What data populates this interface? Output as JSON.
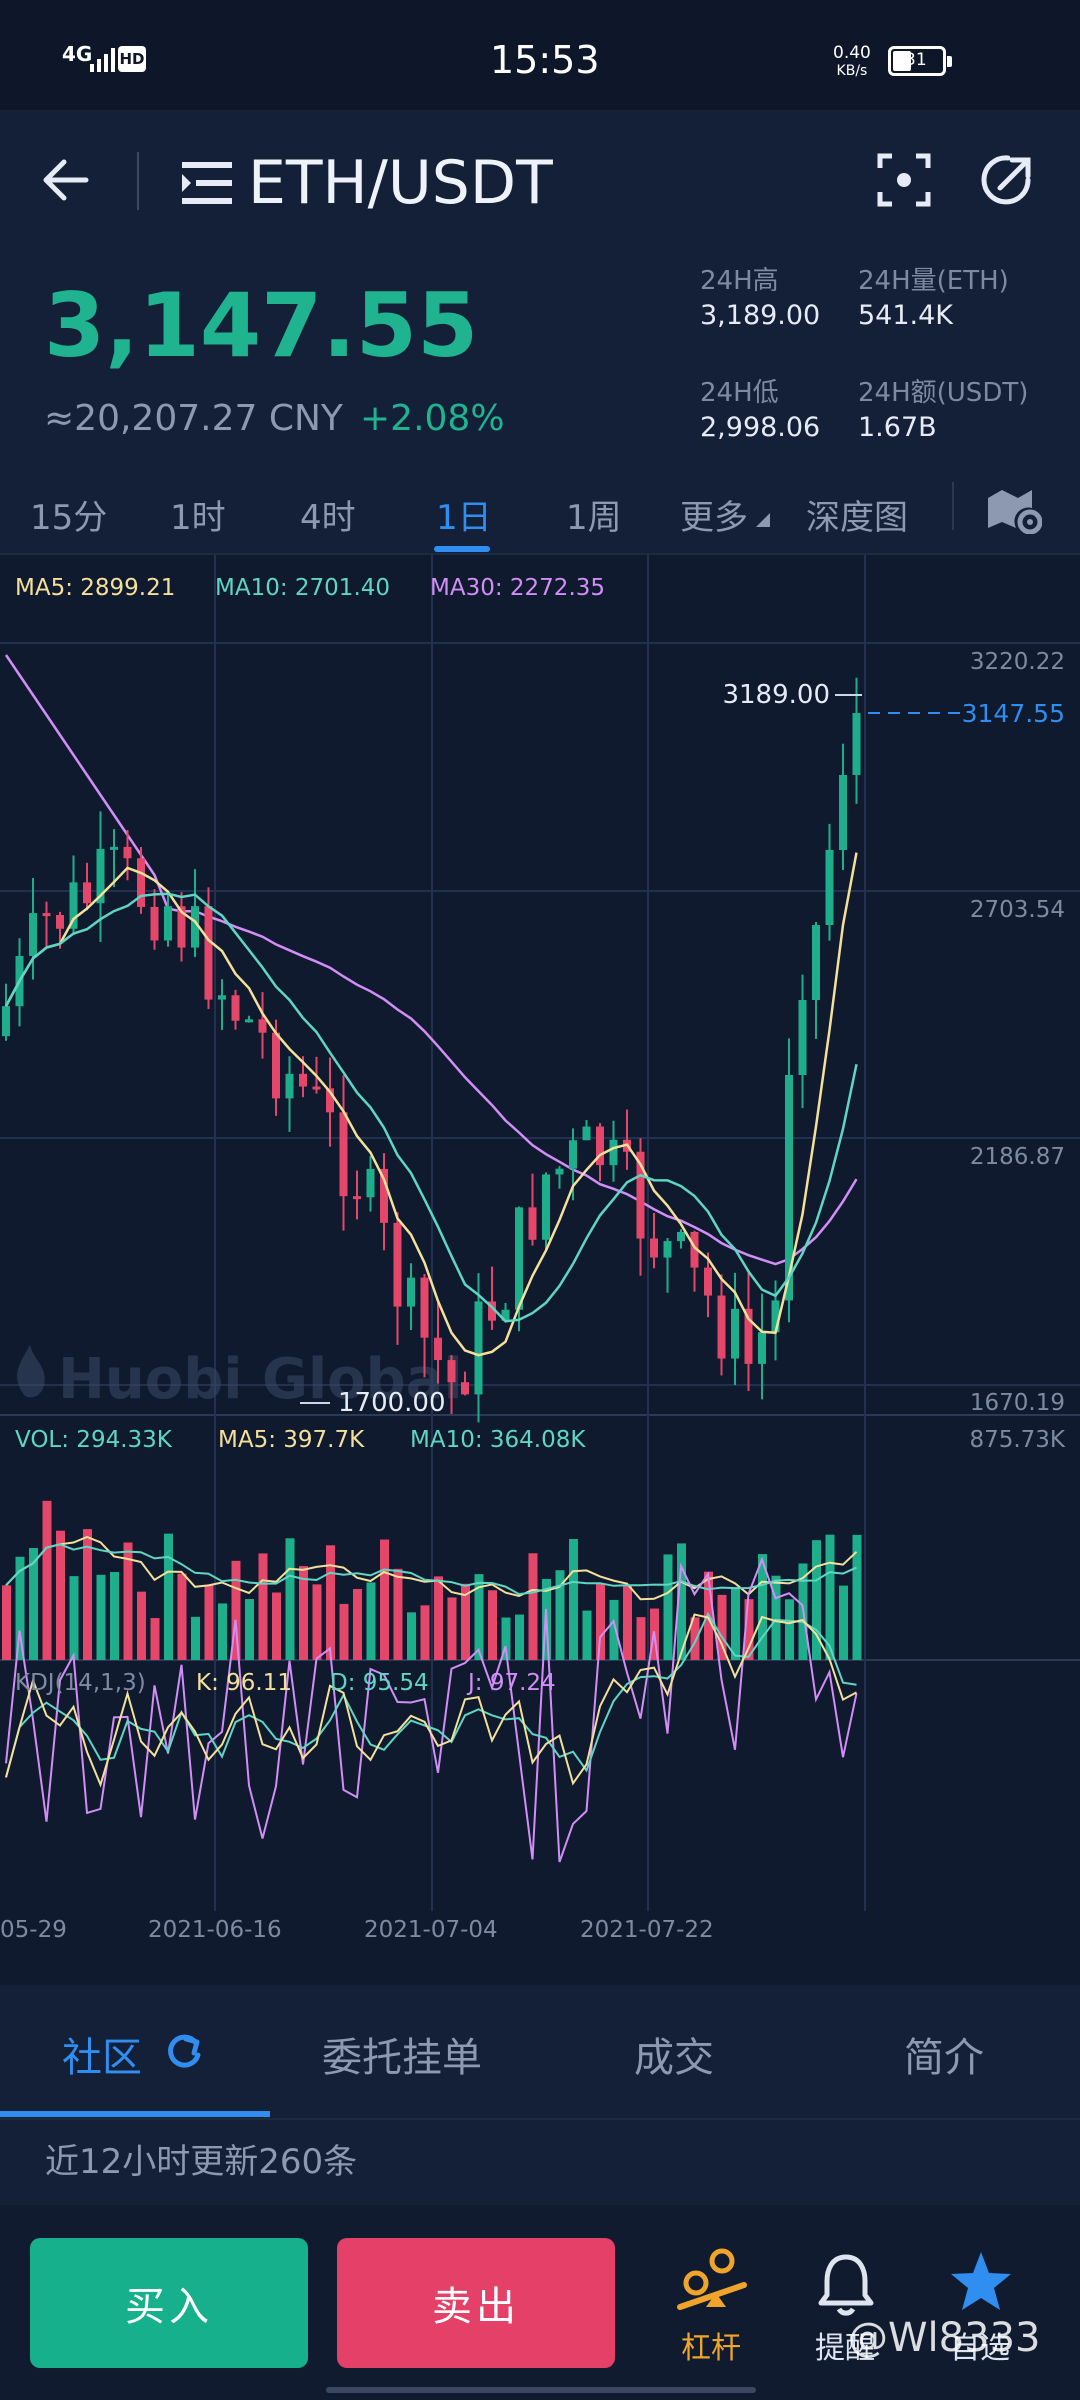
{
  "status_bar": {
    "network": "4G",
    "hd": "HD",
    "time": "15:53",
    "speed_value": "0.40",
    "speed_unit": "KB/s",
    "battery": "31"
  },
  "header": {
    "pair": "ETH/USDT",
    "icons": [
      "back-arrow-icon",
      "menu-icon",
      "scan-icon",
      "share-icon"
    ]
  },
  "summary": {
    "price": "3,147.55",
    "cny": "≈20,207.27 CNY",
    "change": "+2.08%",
    "stats": [
      {
        "label": "24H高",
        "value": "3,189.00"
      },
      {
        "label": "24H量(ETH)",
        "value": "541.4K"
      },
      {
        "label": "24H低",
        "value": "2,998.06"
      },
      {
        "label": "24H额(USDT)",
        "value": "1.67B"
      }
    ]
  },
  "periods": {
    "items": [
      "15分",
      "1时",
      "4时",
      "1日",
      "1周",
      "更多",
      "深度图"
    ],
    "active": "1日"
  },
  "chart": {
    "ma_legend": {
      "ma5": "MA5: 2899.21",
      "ma10": "MA10: 2701.40",
      "ma30": "MA30: 2272.35"
    },
    "price_axis": [
      "3220.22",
      "2703.54",
      "2186.87",
      "1670.19"
    ],
    "high_label": "3189.00",
    "low_label": "1700.00",
    "current_label": "3147.55",
    "watermark": "Huobi Global",
    "vol_legend": {
      "vol": "VOL: 294.33K",
      "ma5": "MA5: 397.7K",
      "ma10": "MA10: 364.08K"
    },
    "vol_axis_max": "875.73K",
    "kdj_legend": {
      "name": "KDJ(14,1,3)",
      "k": "K: 96.11",
      "d": "D: 95.54",
      "j": "J: 97.24"
    },
    "dates": [
      "05-29",
      "2021-06-16",
      "2021-07-04",
      "2021-07-22"
    ],
    "colors": {
      "up": "#1fae8c",
      "down": "#e4476a",
      "ma5": "#f4e09a",
      "ma10": "#5fd6c3",
      "ma30": "#d28ef6"
    }
  },
  "tabs": {
    "items": [
      "社区",
      "委托挂单",
      "成交",
      "简介"
    ],
    "active": "社区"
  },
  "notice": "近12小时更新260条",
  "bottom": {
    "buy": "买入",
    "sell": "卖出",
    "leverage": "杠杆",
    "alert": "提醒",
    "favorite": "自选",
    "watermark": "@Wl8333"
  }
}
